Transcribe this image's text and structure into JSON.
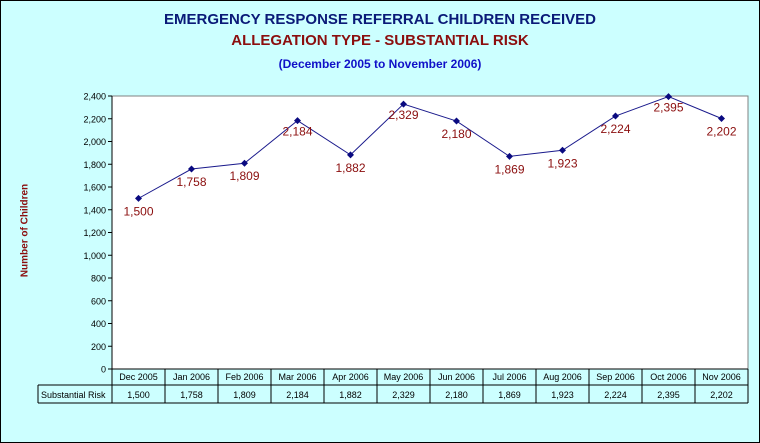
{
  "chart_data": {
    "type": "line",
    "title": "EMERGENCY RESPONSE REFERRAL CHILDREN RECEIVED",
    "subtitle": "ALLEGATION TYPE - SUBSTANTIAL RISK",
    "date_range": "(December 2005 to November 2006)",
    "ylabel": "Number of Children",
    "xlabel": "",
    "ylim": [
      0,
      2400
    ],
    "yticks": [
      "0",
      "200",
      "400",
      "600",
      "800",
      "1,000",
      "1,200",
      "1,400",
      "1,600",
      "1,800",
      "2,000",
      "2,200",
      "2,400"
    ],
    "categories": [
      "Dec 2005",
      "Jan 2006",
      "Feb 2006",
      "Mar 2006",
      "Apr 2006",
      "May 2006",
      "Jun 2006",
      "Jul 2006",
      "Aug 2006",
      "Sep 2006",
      "Oct 2006",
      "Nov 2006"
    ],
    "series": [
      {
        "name": "Substantial Risk",
        "values": [
          1500,
          1758,
          1809,
          2184,
          1882,
          2329,
          2180,
          1869,
          1923,
          2224,
          2395,
          2202
        ],
        "labels": [
          "1,500",
          "1,758",
          "1,809",
          "2,184",
          "1,882",
          "2,329",
          "2,180",
          "1,869",
          "1,923",
          "2,224",
          "2,395",
          "2,202"
        ]
      }
    ],
    "data_table": true,
    "grid": false,
    "colors": {
      "background": "#ccffff",
      "line": "#1a1a8c",
      "marker": "#0a0a80",
      "data_label": "#8b0e0e"
    }
  }
}
